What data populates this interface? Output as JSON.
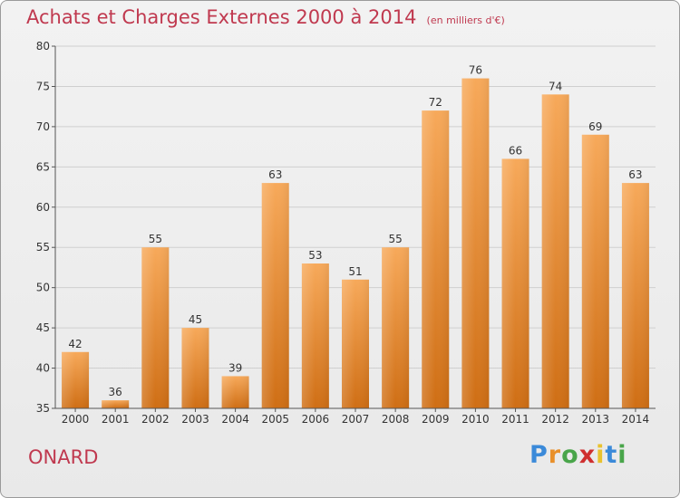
{
  "title": "Achats et Charges Externes 2000 à 2014",
  "unit_note": "(en milliers d'€)",
  "city": "ONARD",
  "logo_text": "Proxiti",
  "colors": {
    "title": "#c0394f",
    "bar_top": "#f7a95a",
    "bar_bottom": "#cf6e14",
    "grid": "#cfcfcf"
  },
  "chart_data": {
    "type": "bar",
    "title": "Achats et Charges Externes 2000 à 2014",
    "categories": [
      "2000",
      "2001",
      "2002",
      "2003",
      "2004",
      "2005",
      "2006",
      "2007",
      "2008",
      "2009",
      "2010",
      "2011",
      "2012",
      "2013",
      "2014"
    ],
    "values": [
      42,
      36,
      55,
      45,
      39,
      63,
      53,
      51,
      55,
      72,
      76,
      66,
      74,
      69,
      63
    ],
    "ylim": [
      35,
      80
    ],
    "yticks": [
      35,
      40,
      45,
      50,
      55,
      60,
      65,
      70,
      75,
      80
    ],
    "grid": true
  }
}
